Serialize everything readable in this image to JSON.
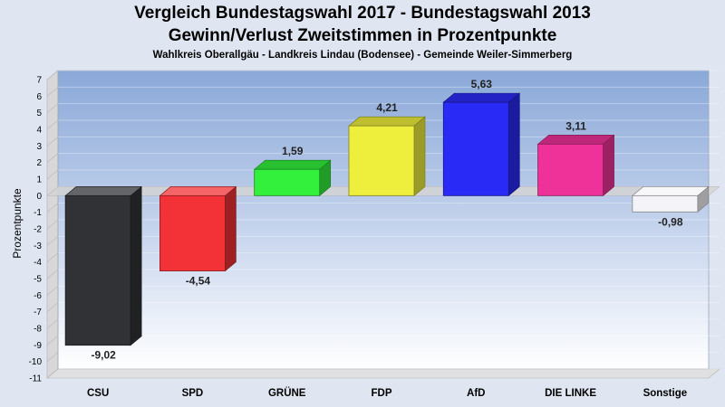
{
  "header": {
    "title_line1": "Vergleich Bundestagswahl 2017 - Bundestagswahl 2013",
    "title_line2": "Gewinn/Verlust Zweitstimmen in Prozentpunkte",
    "subtitle": "Wahlkreis Oberallgäu - Landkreis Lindau (Bodensee) - Gemeinde Weiler-Simmerberg"
  },
  "chart_data": {
    "type": "bar",
    "title": "Vergleich Bundestagswahl 2017 - Bundestagswahl 2013",
    "subtitle": "Gewinn/Verlust Zweitstimmen in Prozentpunkte",
    "ylabel": "Prozentpunkte",
    "xlabel": "",
    "ylim": [
      -11,
      7
    ],
    "yticks": [
      7,
      6,
      5,
      4,
      3,
      2,
      1,
      0,
      -1,
      -2,
      -3,
      -4,
      -5,
      -6,
      -7,
      -8,
      -9,
      -10,
      -11
    ],
    "categories": [
      "CSU",
      "SPD",
      "GRÜNE",
      "FDP",
      "AfD",
      "DIE LINKE",
      "Sonstige"
    ],
    "values": [
      -9.02,
      -4.54,
      1.59,
      4.21,
      5.63,
      3.11,
      -0.98
    ],
    "value_labels": [
      "-9,02",
      "-4,54",
      "1,59",
      "4,21",
      "5,63",
      "3,11",
      "-0,98"
    ],
    "colors": [
      "#303236",
      "#f23236",
      "#32f03c",
      "#eeee3c",
      "#2a2af6",
      "#ee3299",
      "#f4f4f8"
    ],
    "grid": true,
    "legend": "none"
  }
}
